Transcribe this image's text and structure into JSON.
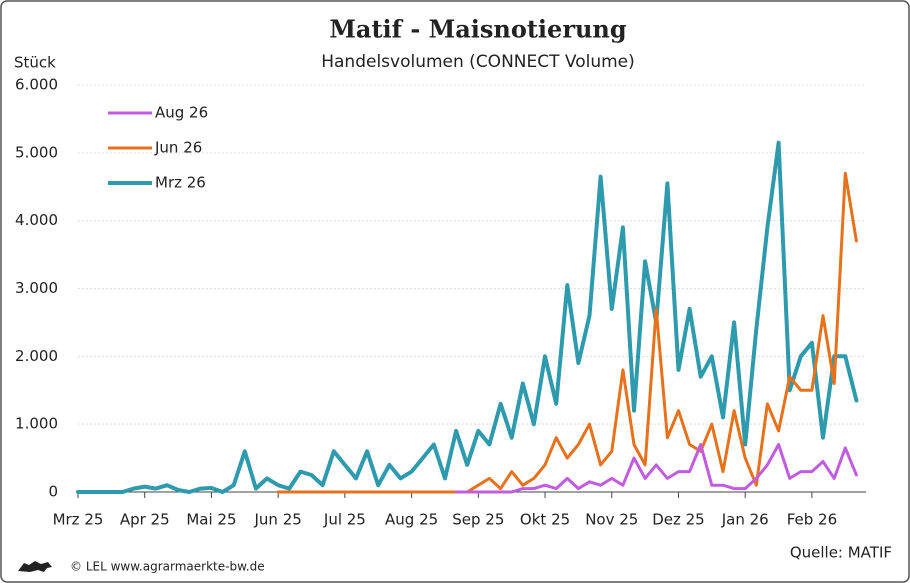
{
  "chart_data": {
    "type": "line",
    "title": "Matif - Maisnotierung",
    "subtitle": "Handelsvolumen (CONNECT Volume)",
    "y_label": "Stück",
    "source": "Quelle: MATIF",
    "credit": "© LEL www.agrarmaerkte-bw.de",
    "categories": [
      "Mrz 25",
      null,
      null,
      null,
      null,
      null,
      "Apr 25",
      null,
      null,
      null,
      null,
      null,
      "Mai 25",
      null,
      null,
      null,
      null,
      null,
      "Jun 25",
      null,
      null,
      null,
      null,
      null,
      "Jul 25",
      null,
      null,
      null,
      null,
      null,
      "Aug 25",
      null,
      null,
      null,
      null,
      null,
      "Sep 25",
      null,
      null,
      null,
      null,
      null,
      "Okt 25",
      null,
      null,
      null,
      null,
      null,
      "Nov 25",
      null,
      null,
      null,
      null,
      null,
      "Dez 25",
      null,
      null,
      null,
      null,
      null,
      "Jan 26",
      null,
      null,
      null,
      null,
      null,
      "Feb 26",
      null,
      null,
      null,
      null
    ],
    "series": [
      {
        "name": "Aug 26",
        "color": "#c15ce0",
        "values": [
          null,
          null,
          null,
          null,
          null,
          null,
          null,
          null,
          null,
          null,
          null,
          null,
          null,
          null,
          null,
          null,
          null,
          null,
          null,
          null,
          null,
          null,
          null,
          null,
          null,
          null,
          null,
          null,
          null,
          null,
          null,
          null,
          null,
          null,
          0,
          0,
          0,
          0,
          0,
          0,
          50,
          50,
          100,
          50,
          200,
          50,
          150,
          100,
          200,
          100,
          500,
          200,
          400,
          200,
          300,
          300,
          700,
          100,
          100,
          50,
          50,
          200,
          400,
          700,
          200,
          300,
          300,
          450,
          200,
          650,
          250
        ]
      },
      {
        "name": "Jun 26",
        "color": "#e8711c",
        "values": [
          null,
          null,
          null,
          null,
          null,
          null,
          null,
          null,
          null,
          null,
          null,
          null,
          null,
          null,
          null,
          null,
          null,
          null,
          0,
          0,
          0,
          0,
          0,
          0,
          0,
          0,
          0,
          0,
          0,
          0,
          0,
          0,
          0,
          0,
          0,
          0,
          100,
          200,
          50,
          300,
          100,
          200,
          400,
          800,
          500,
          700,
          1000,
          400,
          600,
          1800,
          700,
          400,
          2700,
          800,
          1200,
          700,
          600,
          1000,
          300,
          1200,
          500,
          100,
          1300,
          900,
          1700,
          1500,
          1500,
          2600,
          1600,
          4700,
          3700
        ]
      },
      {
        "name": "Mrz 26",
        "color": "#2e9aad",
        "values": [
          0,
          0,
          0,
          0,
          0,
          50,
          80,
          50,
          100,
          30,
          0,
          50,
          60,
          0,
          100,
          600,
          50,
          200,
          100,
          50,
          300,
          250,
          100,
          600,
          400,
          200,
          600,
          100,
          400,
          200,
          300,
          500,
          700,
          200,
          900,
          400,
          900,
          700,
          1300,
          800,
          1600,
          1000,
          2000,
          1300,
          3050,
          1900,
          2600,
          4650,
          2700,
          3900,
          1200,
          3400,
          2500,
          4550,
          1800,
          2700,
          1700,
          2000,
          1100,
          2500,
          700,
          2400,
          3900,
          5150,
          1500,
          2000,
          2200,
          800,
          2000,
          2000,
          1350
        ]
      }
    ],
    "ylim": [
      0,
      6000
    ],
    "yticks": [
      0,
      {
        "value": 1000,
        "label": "1.000"
      },
      {
        "value": 2000,
        "label": "2.000"
      },
      {
        "value": 3000,
        "label": "3.000"
      },
      {
        "value": 4000,
        "label": "4.000"
      },
      {
        "value": 5000,
        "label": "5.000"
      },
      {
        "value": 6000,
        "label": "6.000"
      }
    ],
    "grid": true,
    "legend": "upper-left"
  }
}
